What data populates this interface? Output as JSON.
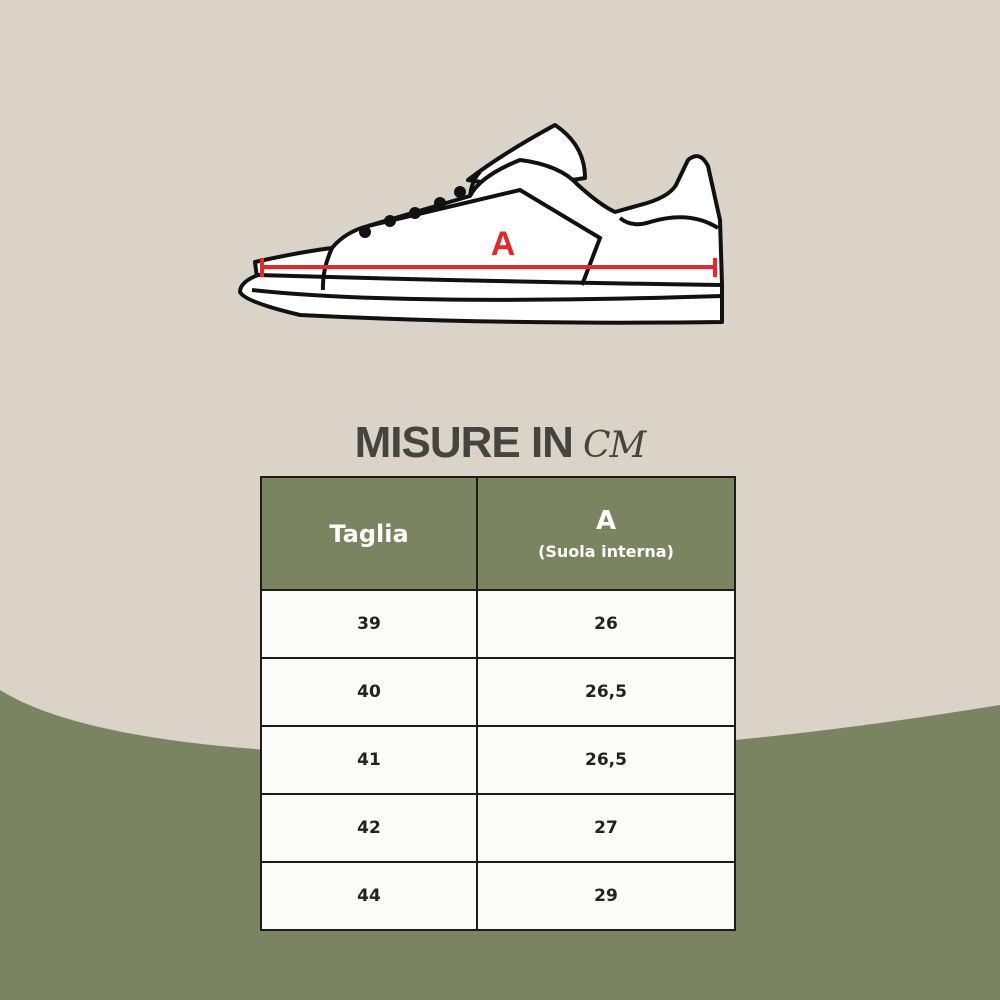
{
  "colors": {
    "background": "#d9d3c8",
    "green": "#7a8461",
    "measure_line": "#e8262a",
    "title": "#45443e"
  },
  "diagram": {
    "measure_label": "A"
  },
  "title": {
    "text": "MISURE IN",
    "unit": "CM"
  },
  "table": {
    "headers": {
      "size": "Taglia",
      "measure": "A",
      "measure_sub": "(Suola interna)"
    },
    "rows": [
      {
        "size": "39",
        "value": "26"
      },
      {
        "size": "40",
        "value": "26,5"
      },
      {
        "size": "41",
        "value": "26,5"
      },
      {
        "size": "42",
        "value": "27"
      },
      {
        "size": "44",
        "value": "29"
      }
    ]
  }
}
